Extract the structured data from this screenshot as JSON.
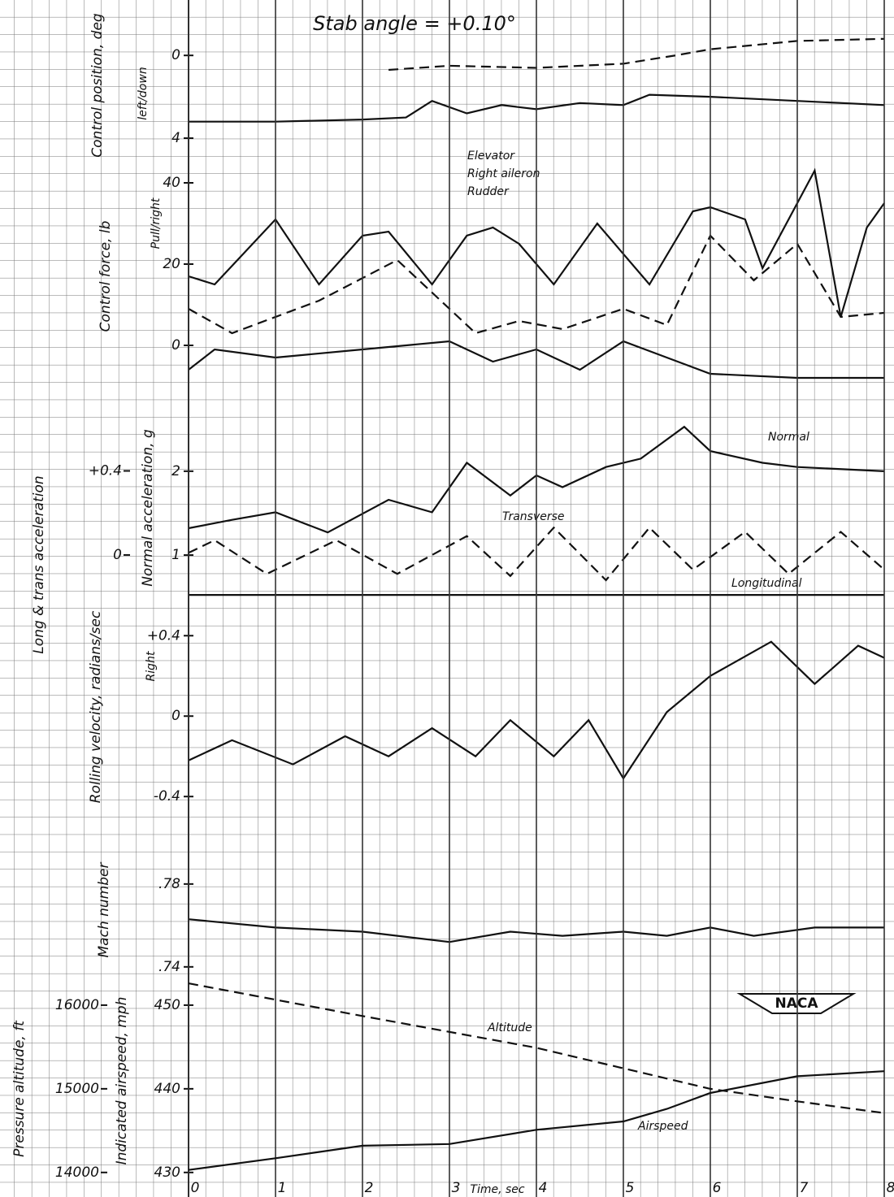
{
  "chart_data": [
    {
      "type": "line",
      "title": "Stab angle = +0.10°",
      "ylabel": "Control position, deg",
      "ysubtitle": "left/down",
      "xlim": [
        0,
        8
      ],
      "ylim": [
        5,
        -1.5
      ],
      "yticks": [
        0,
        4
      ],
      "series": [
        {
          "color": "#111",
          "dash": false,
          "x": [
            0,
            1,
            2,
            2.5,
            2.8,
            3.2,
            3.6,
            4,
            4.5,
            5,
            5.3,
            6,
            7,
            8
          ],
          "values": [
            3.2,
            3.2,
            3.1,
            3.0,
            2.2,
            2.8,
            2.4,
            2.6,
            2.3,
            2.4,
            1.9,
            2.0,
            2.2,
            2.4
          ]
        },
        {
          "color": "#111",
          "dash": true,
          "x": [
            2.3,
            3,
            4,
            5,
            5.6,
            6,
            7,
            8
          ],
          "values": [
            0.7,
            0.5,
            0.6,
            0.4,
            0.0,
            -0.3,
            -0.7,
            -0.8
          ]
        }
      ]
    },
    {
      "type": "line",
      "ylabel": "Control force, lb",
      "ysubtitle": "Pull/right",
      "xlim": [
        0,
        8
      ],
      "ylim": [
        -9,
        45
      ],
      "yticks": [
        0,
        20,
        40
      ],
      "series": [
        {
          "name": "Elevator",
          "color": "#111",
          "dash": false,
          "x": [
            0,
            0.3,
            1.0,
            1.5,
            2.0,
            2.3,
            2.8,
            3.2,
            3.5,
            3.8,
            4.2,
            4.7,
            5.3,
            5.8,
            6.0,
            6.4,
            6.6,
            7.0,
            7.2,
            7.5,
            7.8,
            8
          ],
          "values": [
            17,
            15,
            31,
            15,
            27,
            28,
            15,
            27,
            29,
            25,
            15,
            30,
            15,
            33,
            34,
            31,
            19,
            35,
            43,
            7,
            29,
            35
          ]
        },
        {
          "name": "Right aileron",
          "color": "#111",
          "dash": true,
          "x": [
            0,
            0.5,
            1.5,
            2.4,
            2.8,
            3.3,
            3.8,
            4.3,
            5,
            5.5,
            6.0,
            6.5,
            7.0,
            7.5,
            8
          ],
          "values": [
            9,
            3,
            11,
            21,
            13,
            3,
            6,
            4,
            9,
            5,
            27,
            16,
            25,
            7,
            8
          ]
        },
        {
          "name": "Rudder",
          "color": "#111",
          "dash": false,
          "x": [
            0,
            0.3,
            1,
            2,
            3,
            3.5,
            4,
            4.5,
            5,
            5.5,
            6,
            7,
            8
          ],
          "values": [
            -6,
            -1,
            -3,
            -1,
            1,
            -4,
            -1,
            -6,
            1,
            -3,
            -7,
            -8,
            -8
          ]
        }
      ]
    },
    {
      "type": "line",
      "ylabel": "Normal acceleration, g",
      "y2label": "Long & trans acceleration",
      "xlim": [
        0,
        8
      ],
      "ylim": [
        0.4,
        2.58
      ],
      "yticks": [
        1,
        2
      ],
      "y2lim": [
        -0.24,
        0.63
      ],
      "y2ticks": [
        0,
        {
          "value": 0.4,
          "label": "+0.4"
        }
      ],
      "series": [
        {
          "name": "Normal",
          "color": "#111",
          "dash": false,
          "x": [
            0,
            0.5,
            1,
            1.6,
            2.3,
            2.8,
            3.2,
            3.7,
            4.0,
            4.3,
            4.8,
            5.2,
            5.7,
            6.0,
            6.6,
            7.0,
            8
          ],
          "values": [
            1.32,
            1.42,
            1.51,
            1.27,
            1.66,
            1.51,
            2.1,
            1.71,
            1.95,
            1.81,
            2.05,
            2.15,
            2.53,
            2.24,
            2.1,
            2.05,
            2.0
          ]
        },
        {
          "name": "Transverse",
          "color": "#111",
          "dash": true,
          "axis": "y2",
          "x": [
            0,
            0.3,
            0.9,
            1.7,
            2.4,
            3.2,
            3.7,
            4.2,
            4.8,
            5.3,
            5.8,
            6.4,
            6.9,
            7.5,
            8
          ],
          "values": [
            0.01,
            0.07,
            -0.09,
            0.07,
            -0.09,
            0.09,
            -0.1,
            0.13,
            -0.12,
            0.13,
            -0.07,
            0.11,
            -0.09,
            0.11,
            -0.07
          ]
        },
        {
          "name": "Longitudinal",
          "color": "#111",
          "dash": false,
          "axis": "y2",
          "x": [
            0,
            8
          ],
          "values": [
            -0.19,
            -0.19
          ]
        }
      ]
    },
    {
      "type": "line",
      "ylabel": "Rolling velocity, radians/sec",
      "ysubtitle": "Right",
      "xlim": [
        0,
        8
      ],
      "ylim": [
        -0.48,
        0.49
      ],
      "yticks": [
        {
          "value": 0.4,
          "label": "+0.4"
        },
        0,
        -0.4
      ],
      "series": [
        {
          "color": "#111",
          "dash": false,
          "x": [
            0,
            0.5,
            1.2,
            1.8,
            2.3,
            2.8,
            3.3,
            3.7,
            4.2,
            4.6,
            5,
            5.5,
            6.0,
            6.7,
            7.2,
            7.7,
            8
          ],
          "values": [
            -0.22,
            -0.12,
            -0.24,
            -0.1,
            -0.2,
            -0.06,
            -0.2,
            -0.02,
            -0.2,
            -0.02,
            -0.31,
            0.02,
            0.2,
            0.37,
            0.16,
            0.35,
            0.29
          ]
        }
      ]
    },
    {
      "type": "line",
      "ylabel": "Mach number",
      "xlim": [
        0,
        8
      ],
      "ylim": [
        0.736,
        0.787
      ],
      "yticks": [
        {
          "value": 0.74,
          "label": ".74"
        },
        {
          "value": 0.78,
          "label": ".78"
        }
      ],
      "series": [
        {
          "color": "#111",
          "dash": false,
          "x": [
            0,
            1,
            2,
            3,
            3.7,
            4.3,
            5,
            5.5,
            6,
            6.5,
            7.2,
            8
          ],
          "values": [
            0.763,
            0.759,
            0.757,
            0.752,
            0.757,
            0.755,
            0.757,
            0.755,
            0.759,
            0.755,
            0.759,
            0.759
          ]
        }
      ]
    },
    {
      "type": "line",
      "ylabel": "Indicated airspeed, mph",
      "y2label": "Pressure altitude, ft",
      "xlabel": "Time, sec",
      "xlim": [
        0,
        8
      ],
      "xticks": [
        0,
        1,
        2,
        3,
        4,
        5,
        6,
        7,
        8
      ],
      "ylim": [
        429.3,
        453.1
      ],
      "yticks": [
        430,
        440,
        450
      ],
      "y2lim": [
        13930,
        16310
      ],
      "y2ticks": [
        14000,
        15000,
        16000
      ],
      "series": [
        {
          "name": "Airspeed",
          "color": "#111",
          "dash": false,
          "x": [
            0,
            1,
            2,
            3,
            4,
            5,
            5.5,
            6,
            7,
            8
          ],
          "values": [
            430.3,
            431.7,
            433.2,
            433.4,
            435.1,
            436.1,
            437.6,
            439.5,
            441.5,
            442.1
          ]
        },
        {
          "name": "Altitude",
          "color": "#111",
          "dash": true,
          "axis": "y2",
          "x": [
            0,
            2,
            4,
            6,
            7,
            8
          ],
          "values": [
            16260,
            15870,
            15490,
            15000,
            14850,
            14710
          ]
        }
      ]
    }
  ],
  "logo": "NACA"
}
